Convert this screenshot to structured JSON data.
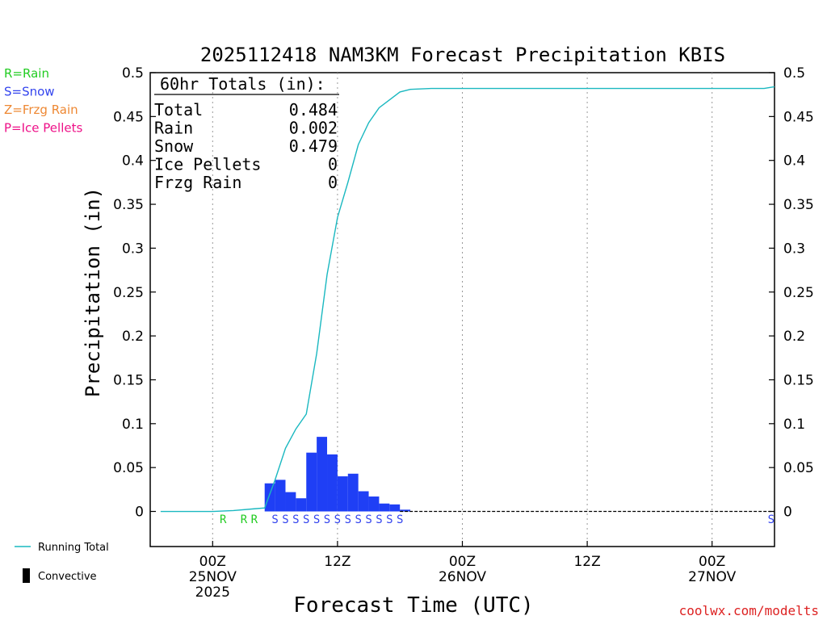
{
  "chart_data": {
    "type": "bar",
    "title": "2025112418 NAM3KM Forecast Precipitation KBIS",
    "xlabel": "Forecast Time (UTC)",
    "ylabel": "Precipitation (in)",
    "ylim": [
      -0.04,
      0.5
    ],
    "xlim_hours": [
      -6,
      54
    ],
    "y_ticks": [
      0,
      0.05,
      0.1,
      0.15,
      0.2,
      0.25,
      0.3,
      0.35,
      0.4,
      0.45,
      0.5
    ],
    "y_tick_labels": [
      "0",
      "0.05",
      "0.1",
      "0.15",
      "0.2",
      "0.25",
      "0.3",
      "0.35",
      "0.4",
      "0.45",
      "0.5"
    ],
    "x_ticks": [
      {
        "hour": 0,
        "line1": "00Z",
        "line2": "25NOV",
        "line3": "2025"
      },
      {
        "hour": 12,
        "line1": "12Z",
        "line2": "",
        "line3": ""
      },
      {
        "hour": 24,
        "line1": "00Z",
        "line2": "26NOV",
        "line3": ""
      },
      {
        "hour": 36,
        "line1": "12Z",
        "line2": "",
        "line3": ""
      },
      {
        "hour": 48,
        "line1": "00Z",
        "line2": "27NOV",
        "line3": ""
      }
    ],
    "totals_box": {
      "header": "60hr Totals (in):",
      "rows": [
        {
          "label": "Total",
          "value": "0.484"
        },
        {
          "label": "Rain",
          "value": "0.002"
        },
        {
          "label": "Snow",
          "value": "0.479"
        },
        {
          "label": "Ice Pellets",
          "value": "0"
        },
        {
          "label": "Frzg Rain",
          "value": "0"
        }
      ]
    },
    "legend_ptypes": [
      {
        "text": "R=Rain",
        "color": "#22cc22"
      },
      {
        "text": "S=Snow",
        "color": "#3344ee"
      },
      {
        "text": "Z=Frzg Rain",
        "color": "#ee8833"
      },
      {
        "text": "P=Ice Pellets",
        "color": "#ee1188"
      }
    ],
    "legend_series": [
      {
        "text": "Running Total",
        "color": "#1ab8c0"
      },
      {
        "text": "Convective",
        "color": "#000000"
      }
    ],
    "bar_color": "#1f3ff5",
    "line_color": "#1ab8c0",
    "hourly_bars": [
      {
        "hour": 5.5,
        "value": 0.032
      },
      {
        "hour": 6.5,
        "value": 0.036
      },
      {
        "hour": 7.5,
        "value": 0.022
      },
      {
        "hour": 8.5,
        "value": 0.015
      },
      {
        "hour": 9.5,
        "value": 0.067
      },
      {
        "hour": 10.5,
        "value": 0.085
      },
      {
        "hour": 11.5,
        "value": 0.065
      },
      {
        "hour": 12.5,
        "value": 0.04
      },
      {
        "hour": 13.5,
        "value": 0.043
      },
      {
        "hour": 14.5,
        "value": 0.023
      },
      {
        "hour": 15.5,
        "value": 0.017
      },
      {
        "hour": 16.5,
        "value": 0.009
      },
      {
        "hour": 17.5,
        "value": 0.008
      },
      {
        "hour": 18.5,
        "value": 0.002
      }
    ],
    "running_total": [
      {
        "hour": -5,
        "value": 0
      },
      {
        "hour": 0,
        "value": 0
      },
      {
        "hour": 2,
        "value": 0.001
      },
      {
        "hour": 4,
        "value": 0.003
      },
      {
        "hour": 5,
        "value": 0.004
      },
      {
        "hour": 6,
        "value": 0.036
      },
      {
        "hour": 7,
        "value": 0.072
      },
      {
        "hour": 8,
        "value": 0.094
      },
      {
        "hour": 9,
        "value": 0.111
      },
      {
        "hour": 10,
        "value": 0.18
      },
      {
        "hour": 11,
        "value": 0.27
      },
      {
        "hour": 12,
        "value": 0.335
      },
      {
        "hour": 13,
        "value": 0.375
      },
      {
        "hour": 14,
        "value": 0.418
      },
      {
        "hour": 15,
        "value": 0.443
      },
      {
        "hour": 16,
        "value": 0.46
      },
      {
        "hour": 18,
        "value": 0.478
      },
      {
        "hour": 19,
        "value": 0.481
      },
      {
        "hour": 21,
        "value": 0.482
      },
      {
        "hour": 30,
        "value": 0.482
      },
      {
        "hour": 48,
        "value": 0.482
      },
      {
        "hour": 53,
        "value": 0.482
      },
      {
        "hour": 54,
        "value": 0.484
      }
    ],
    "ptype_markers": [
      {
        "hour": 1,
        "type": "R"
      },
      {
        "hour": 3,
        "type": "R"
      },
      {
        "hour": 4,
        "type": "R"
      },
      {
        "hour": 6,
        "type": "S"
      },
      {
        "hour": 7,
        "type": "S"
      },
      {
        "hour": 8,
        "type": "S"
      },
      {
        "hour": 9,
        "type": "S"
      },
      {
        "hour": 10,
        "type": "S"
      },
      {
        "hour": 11,
        "type": "S"
      },
      {
        "hour": 12,
        "type": "S"
      },
      {
        "hour": 13,
        "type": "S"
      },
      {
        "hour": 14,
        "type": "S"
      },
      {
        "hour": 15,
        "type": "S"
      },
      {
        "hour": 16,
        "type": "S"
      },
      {
        "hour": 17,
        "type": "S"
      },
      {
        "hour": 18,
        "type": "S"
      },
      {
        "hour": 54,
        "type": "S"
      }
    ],
    "marker_colors": {
      "R": "#22cc22",
      "S": "#3344ee",
      "Z": "#ee8833",
      "P": "#ee1188"
    },
    "credit": "coolwx.com/modelts",
    "credit_color": "#dd2222"
  }
}
